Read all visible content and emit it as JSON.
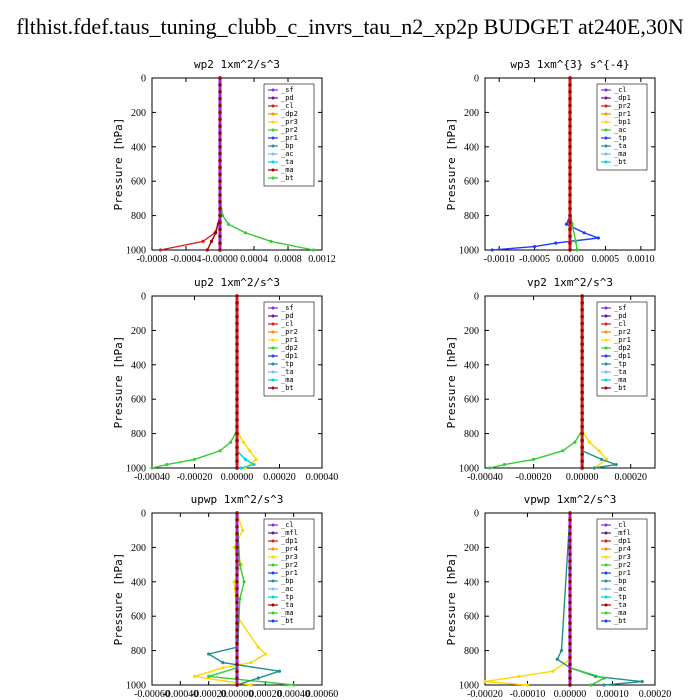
{
  "title": "flthist.fdef.taus_tuning_clubb_c_invrs_tau_n2_xp2p  BUDGET at240E,30N",
  "colors": {
    "purple": "#8a2be2",
    "darkpurple": "#6b0d8f",
    "red": "#d41c1c",
    "darkred": "#a00000",
    "orange": "#ff8c00",
    "yellow": "#ffd700",
    "green": "#32cd32",
    "blue": "#1e3cff",
    "cyan": "#00cfe8",
    "teal": "#1f8f8f",
    "lightblue": "#7ab8ff"
  },
  "chart_data": [
    {
      "type": "line",
      "title": "wp2  1xm^2/s^3",
      "ylabel": "Pressure [hPa]",
      "ylim": [
        0,
        1000
      ],
      "xlim": [
        -0.0008,
        0.0012
      ],
      "xticks": [
        "-0.0008",
        "-0.0004",
        "-0.00000",
        "0.0004",
        "0.0008",
        "0.0012"
      ],
      "xtick_vals": [
        -0.0008,
        -0.0004,
        0,
        0.0004,
        0.0008,
        0.0012
      ],
      "yticks": [
        "0",
        "200",
        "400",
        "600",
        "800",
        "1000"
      ],
      "legend": [
        "_sf",
        "_pd",
        "_cl",
        "_dp2",
        "_pr3",
        "_pr2",
        "_pr1",
        "_bp",
        "_ac",
        "_ta",
        "_ma",
        "_bt"
      ],
      "series": [
        {
          "name": "_pr1",
          "color": "green",
          "y": [
            0,
            700,
            800,
            850,
            900,
            950,
            1000
          ],
          "x": [
            0,
            0,
            3e-05,
            0.0001,
            0.0003,
            0.0006,
            0.0011
          ]
        },
        {
          "name": "_dp2",
          "color": "red",
          "y": [
            0,
            800,
            850,
            900,
            950,
            1000
          ],
          "x": [
            0,
            0,
            -2e-05,
            -6e-05,
            -0.0002,
            -0.0007
          ]
        },
        {
          "name": "_pr3",
          "color": "darkred",
          "y": [
            0,
            800,
            900,
            950,
            1000
          ],
          "x": [
            0,
            0,
            -5e-05,
            -0.0001,
            -0.00015
          ]
        },
        {
          "name": "_ac",
          "color": "blue",
          "y": [
            0,
            1000
          ],
          "x": [
            0,
            0
          ]
        },
        {
          "name": "_bt",
          "color": "cyan",
          "y": [
            0,
            1000
          ],
          "x": [
            0,
            0
          ]
        },
        {
          "name": "_sf",
          "color": "purple",
          "y": [
            0,
            1000
          ],
          "x": [
            0,
            0
          ]
        }
      ]
    },
    {
      "type": "line",
      "title": "wp3  1xm^{3} s^{-4}",
      "ylabel": "Pressure [hPa]",
      "ylim": [
        0,
        1000
      ],
      "xlim": [
        -0.0012,
        0.0012
      ],
      "xticks": [
        "-0.0010",
        "-0.0005",
        "0.0000",
        "0.0005",
        "0.0010"
      ],
      "xtick_vals": [
        -0.001,
        -0.0005,
        0,
        0.0005,
        0.001
      ],
      "yticks": [
        "0",
        "200",
        "400",
        "600",
        "800",
        "1000"
      ],
      "legend": [
        "_cl",
        "_dp1",
        "_pr2",
        "_pr1",
        "_bp1",
        "_ac",
        "_tp",
        "_ta",
        "_ma",
        "_bt"
      ],
      "series": [
        {
          "name": "_tp",
          "color": "blue",
          "y": [
            0,
            800,
            850,
            900,
            930,
            960,
            980,
            1000
          ],
          "x": [
            0,
            0,
            -5e-05,
            0.0002,
            0.0004,
            -0.0002,
            -0.0005,
            -0.0011
          ]
        },
        {
          "name": "_ac",
          "color": "green",
          "y": [
            0,
            750,
            850,
            950,
            1000
          ],
          "x": [
            0,
            0,
            3e-05,
            8e-05,
            0.0001
          ]
        },
        {
          "name": "_cl",
          "color": "red",
          "y": [
            0,
            1000
          ],
          "x": [
            0,
            0
          ]
        },
        {
          "name": "_bt",
          "color": "cyan",
          "y": [
            0,
            1000
          ],
          "x": [
            0,
            0
          ]
        }
      ]
    },
    {
      "type": "line",
      "title": "up2  1xm^2/s^3",
      "ylabel": "Pressure [hPa]",
      "ylim": [
        0,
        1000
      ],
      "xlim": [
        -0.0004,
        0.0004
      ],
      "xticks": [
        "-0.00040",
        "-0.00020",
        "0.00000",
        "0.00020",
        "0.00040"
      ],
      "xtick_vals": [
        -0.0004,
        -0.0002,
        0,
        0.0002,
        0.0004
      ],
      "yticks": [
        "0",
        "200",
        "400",
        "600",
        "800",
        "1000"
      ],
      "legend": [
        "_sf",
        "_pd",
        "_cl",
        "_pr2",
        "_pr1",
        "_dp2",
        "_dp1",
        "_tp",
        "_ta",
        "_ma",
        "_bt"
      ],
      "series": [
        {
          "name": "_dp1",
          "color": "green",
          "y": [
            0,
            780,
            850,
            900,
            950,
            980,
            1000
          ],
          "x": [
            0,
            0,
            -3e-05,
            -8e-05,
            -0.0002,
            -0.00033,
            -0.0004
          ]
        },
        {
          "name": "_pr1",
          "color": "yellow",
          "y": [
            0,
            780,
            850,
            900,
            950,
            1000
          ],
          "x": [
            0,
            0,
            3e-05,
            6e-05,
            9e-05,
            4e-05
          ]
        },
        {
          "name": "_tp",
          "color": "cyan",
          "y": [
            0,
            900,
            950,
            980,
            1000
          ],
          "x": [
            0,
            0,
            4e-05,
            8e-05,
            2e-05
          ]
        },
        {
          "name": "_cl",
          "color": "red",
          "y": [
            0,
            1000
          ],
          "x": [
            0,
            0
          ]
        }
      ]
    },
    {
      "type": "line",
      "title": "vp2  1xm^2/s^3",
      "ylabel": "Pressure [hPa]",
      "ylim": [
        0,
        1000
      ],
      "xlim": [
        -0.0004,
        0.0003
      ],
      "xticks": [
        "-0.00040",
        "-0.00020",
        "0.00000",
        "0.00020"
      ],
      "xtick_vals": [
        -0.0004,
        -0.0002,
        0,
        0.0002
      ],
      "yticks": [
        "0",
        "200",
        "400",
        "600",
        "800",
        "1000"
      ],
      "legend": [
        "_sf",
        "_pd",
        "_cl",
        "_pr2",
        "_pr1",
        "_dp2",
        "_dp1",
        "_tp",
        "_ta",
        "_ma",
        "_bt"
      ],
      "series": [
        {
          "name": "_dp1",
          "color": "green",
          "y": [
            0,
            780,
            850,
            900,
            950,
            980,
            1000
          ],
          "x": [
            0,
            0,
            -3e-05,
            -8e-05,
            -0.0002,
            -0.00032,
            -0.00038
          ]
        },
        {
          "name": "_pr1",
          "color": "yellow",
          "y": [
            0,
            780,
            850,
            900,
            950,
            1000
          ],
          "x": [
            0,
            0,
            3e-05,
            7e-05,
            0.0001,
            5e-05
          ]
        },
        {
          "name": "_tp",
          "color": "teal",
          "y": [
            0,
            900,
            950,
            980,
            1000
          ],
          "x": [
            0,
            0,
            8e-05,
            0.00014,
            5e-05
          ]
        },
        {
          "name": "_cl",
          "color": "red",
          "y": [
            0,
            1000
          ],
          "x": [
            0,
            0
          ]
        }
      ]
    },
    {
      "type": "line",
      "title": "upwp  1xm^2/s^3",
      "ylabel": "Pressure [hPa]",
      "ylim": [
        0,
        1000
      ],
      "xlim": [
        -0.0006,
        0.0006
      ],
      "xticks": [
        "-0.00060",
        "-0.00040",
        "-0.00020",
        "0.00000",
        "0.00020",
        "0.00040",
        "0.00060"
      ],
      "xtick_vals": [
        -0.0006,
        -0.0004,
        -0.0002,
        0,
        0.0002,
        0.0004,
        0.0006
      ],
      "yticks": [
        "0",
        "200",
        "400",
        "600",
        "800",
        "1000"
      ],
      "legend": [
        "_cl",
        "_mfl",
        "_dp1",
        "_pr4",
        "_pr3",
        "_pr2",
        "_pr1",
        "_bp",
        "_ac",
        "_tp",
        "_ta",
        "_ma",
        "_bt"
      ],
      "series": [
        {
          "name": "_pr1",
          "color": "yellow",
          "y": [
            0,
            100,
            200,
            300,
            400,
            600,
            780,
            820,
            870,
            900,
            950,
            1000
          ],
          "x": [
            0,
            4e-05,
            -2e-05,
            3e-05,
            -2e-05,
            0,
            0.00015,
            0.0002,
            0.0001,
            -0.0001,
            -0.0003,
            0.0001
          ]
        },
        {
          "name": "_bp",
          "color": "green",
          "y": [
            0,
            300,
            400,
            500,
            900,
            950,
            1000
          ],
          "x": [
            0,
            2e-05,
            5e-05,
            2e-05,
            0,
            -0.0002,
            0.0004
          ]
        },
        {
          "name": "_tp",
          "color": "teal",
          "y": [
            0,
            780,
            820,
            870,
            920,
            960,
            1000
          ],
          "x": [
            0,
            0,
            -0.0002,
            -0.0001,
            0.0003,
            0.00015,
            0
          ]
        },
        {
          "name": "_dp1",
          "color": "red",
          "y": [
            0,
            1000
          ],
          "x": [
            0,
            0
          ]
        },
        {
          "name": "_cl",
          "color": "purple",
          "y": [
            0,
            1000
          ],
          "x": [
            0,
            0
          ]
        }
      ]
    },
    {
      "type": "line",
      "title": "vpwp  1xm^2/s^3",
      "ylabel": "Pressure [hPa]",
      "ylim": [
        0,
        1000
      ],
      "xlim": [
        -0.0002,
        0.0002
      ],
      "xticks": [
        "-0.00020",
        "-0.00010",
        "0.00000",
        "0.00010",
        "0.00020"
      ],
      "xtick_vals": [
        -0.0002,
        -0.0001,
        0,
        0.0001,
        0.0002
      ],
      "yticks": [
        "0",
        "200",
        "400",
        "600",
        "800",
        "1000"
      ],
      "legend": [
        "_cl",
        "_mfl",
        "_dp1",
        "_pr4",
        "_pr3",
        "_pr2",
        "_pr1",
        "_bp",
        "_ac",
        "_tp",
        "_ta",
        "_ma",
        "_bt"
      ],
      "series": [
        {
          "name": "_pr1",
          "color": "yellow",
          "y": [
            0,
            850,
            920,
            950,
            980,
            1000
          ],
          "x": [
            0,
            0,
            -4e-05,
            -0.00012,
            -0.0002,
            -0.0001
          ]
        },
        {
          "name": "_tp",
          "color": "teal",
          "y": [
            0,
            800,
            850,
            900,
            950,
            980,
            1000
          ],
          "x": [
            0,
            -2e-05,
            -3e-05,
            0,
            6e-05,
            0.00017,
            8e-05
          ]
        },
        {
          "name": "_bp",
          "color": "green",
          "y": [
            0,
            900,
            960,
            1000
          ],
          "x": [
            0,
            0,
            8e-05,
            5e-05
          ]
        },
        {
          "name": "_dp1",
          "color": "red",
          "y": [
            0,
            1000
          ],
          "x": [
            0,
            0
          ]
        },
        {
          "name": "_cl",
          "color": "purple",
          "y": [
            0,
            1000
          ],
          "x": [
            0,
            0
          ]
        }
      ]
    }
  ]
}
